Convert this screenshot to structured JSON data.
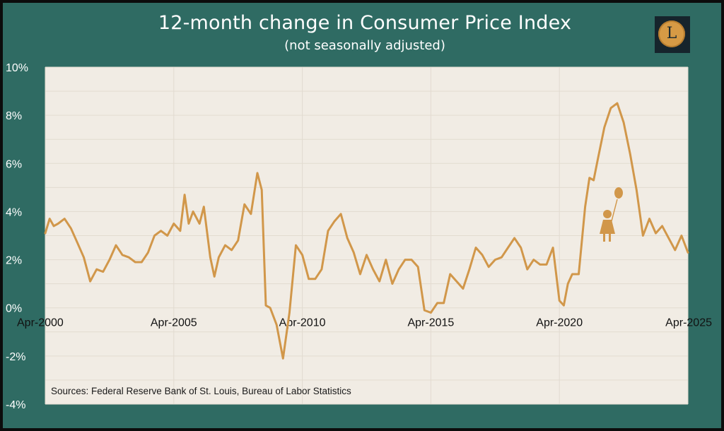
{
  "header": {
    "title": "12-month change in Consumer Price Index",
    "subtitle": "(not seasonally adjusted)",
    "logo_letter": "L"
  },
  "source_note": "Sources: Federal Reserve Bank of St. Louis, Bureau of Labor Statistics",
  "colors": {
    "background": "#2f6b63",
    "plot_area": "#f1ece4",
    "line": "#d1974a",
    "gridline": "#e2dbd0",
    "text": "#ffffff"
  },
  "chart_data": {
    "type": "line",
    "title": "12-month change in Consumer Price Index",
    "subtitle": "(not seasonally adjusted)",
    "xlabel": "",
    "ylabel": "",
    "ylim": [
      -4,
      10
    ],
    "y_ticks": [
      -4,
      -2,
      0,
      2,
      4,
      6,
      8,
      10
    ],
    "y_tick_labels": [
      "-4%",
      "-2%",
      "0%",
      "2%",
      "4%",
      "6%",
      "8%",
      "10%"
    ],
    "x_ticks": [
      2000.25,
      2005.25,
      2010.25,
      2015.25,
      2020.25,
      2025.25
    ],
    "x_tick_labels": [
      "Apr-2000",
      "Apr-2005",
      "Apr-2010",
      "Apr-2015",
      "Apr-2020",
      "Apr-2025"
    ],
    "xlim": [
      2000.25,
      2025.25
    ],
    "grid": true,
    "legend": "none",
    "annotation": "Sources: Federal Reserve Bank of St. Louis, Bureau of Labor Statistics",
    "series": [
      {
        "x": [
          2000.25,
          2000.42,
          2000.58,
          2000.75,
          2001.0,
          2001.25,
          2001.5,
          2001.75,
          2002.0,
          2002.25,
          2002.5,
          2002.75,
          2003.0,
          2003.25,
          2003.5,
          2003.75,
          2004.0,
          2004.25,
          2004.5,
          2004.75,
          2005.0,
          2005.25,
          2005.5,
          2005.67,
          2005.83,
          2006.0,
          2006.25,
          2006.42,
          2006.67,
          2006.83,
          2007.0,
          2007.25,
          2007.5,
          2007.75,
          2008.0,
          2008.25,
          2008.5,
          2008.67,
          2008.83,
          2009.0,
          2009.25,
          2009.5,
          2009.75,
          2010.0,
          2010.25,
          2010.5,
          2010.75,
          2011.0,
          2011.25,
          2011.5,
          2011.75,
          2012.0,
          2012.25,
          2012.5,
          2012.75,
          2013.0,
          2013.25,
          2013.5,
          2013.75,
          2014.0,
          2014.25,
          2014.5,
          2014.75,
          2015.0,
          2015.25,
          2015.5,
          2015.75,
          2016.0,
          2016.25,
          2016.5,
          2016.75,
          2017.0,
          2017.25,
          2017.5,
          2017.75,
          2018.0,
          2018.25,
          2018.5,
          2018.75,
          2019.0,
          2019.25,
          2019.5,
          2019.75,
          2020.0,
          2020.25,
          2020.42,
          2020.58,
          2020.75,
          2021.0,
          2021.25,
          2021.42,
          2021.58,
          2021.75,
          2022.0,
          2022.25,
          2022.5,
          2022.75,
          2023.0,
          2023.25,
          2023.5,
          2023.75,
          2024.0,
          2024.25,
          2024.5,
          2024.75,
          2025.0,
          2025.25
        ],
        "values": [
          3.1,
          3.7,
          3.4,
          3.5,
          3.7,
          3.3,
          2.7,
          2.1,
          1.1,
          1.6,
          1.5,
          2.0,
          2.6,
          2.2,
          2.1,
          1.9,
          1.9,
          2.3,
          3.0,
          3.2,
          3.0,
          3.5,
          3.2,
          4.7,
          3.5,
          4.0,
          3.5,
          4.2,
          2.1,
          1.3,
          2.1,
          2.6,
          2.4,
          2.8,
          4.3,
          3.9,
          5.6,
          4.9,
          0.1,
          0.0,
          -0.7,
          -2.1,
          -0.2,
          2.6,
          2.2,
          1.2,
          1.2,
          1.6,
          3.2,
          3.6,
          3.9,
          2.9,
          2.3,
          1.4,
          2.2,
          1.6,
          1.1,
          2.0,
          1.0,
          1.6,
          2.0,
          2.0,
          1.7,
          -0.1,
          -0.2,
          0.2,
          0.2,
          1.4,
          1.1,
          0.8,
          1.6,
          2.5,
          2.2,
          1.7,
          2.0,
          2.1,
          2.5,
          2.9,
          2.5,
          1.6,
          2.0,
          1.8,
          1.8,
          2.5,
          0.3,
          0.1,
          1.0,
          1.4,
          1.4,
          4.2,
          5.4,
          5.3,
          6.2,
          7.5,
          8.3,
          8.5,
          7.7,
          6.4,
          4.9,
          3.0,
          3.7,
          3.1,
          3.4,
          2.9,
          2.4,
          3.0,
          2.3
        ]
      }
    ]
  }
}
